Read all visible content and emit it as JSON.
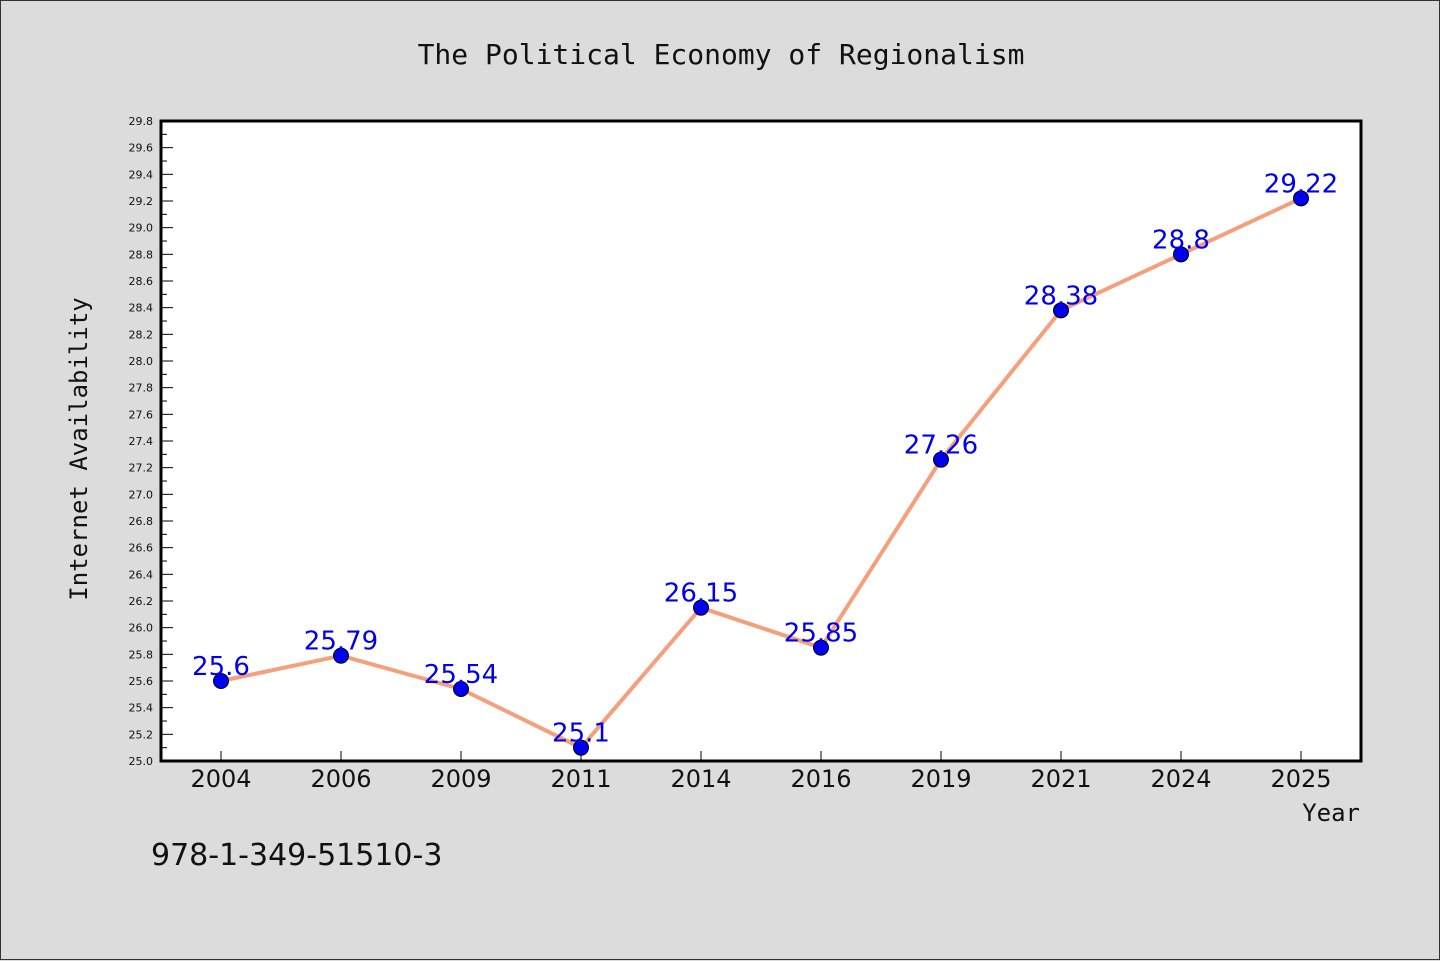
{
  "chart_data": {
    "type": "line",
    "title": "The Political Economy of Regionalism",
    "xlabel": "Year",
    "ylabel": "Internet Availability",
    "categories": [
      "2004",
      "2006",
      "2009",
      "2011",
      "2014",
      "2016",
      "2019",
      "2021",
      "2024",
      "2025"
    ],
    "series": [
      {
        "values": [
          25.6,
          25.79,
          25.54,
          25.1,
          26.15,
          25.85,
          27.26,
          28.38,
          28.8,
          29.22
        ],
        "data_labels": [
          "25.6",
          "25.79",
          "25.54",
          "25.1",
          "26.15",
          "25.85",
          "27.26",
          "28.38",
          "28.8",
          "29.22"
        ],
        "line_color": "#f4a07c",
        "marker_color": "#0000ee"
      }
    ],
    "ylim": [
      25.0,
      29.8
    ],
    "yticks": [
      "25.0",
      "25.2",
      "25.4",
      "25.6",
      "25.8",
      "26.0",
      "26.2",
      "26.4",
      "26.6",
      "26.8",
      "27.0",
      "27.2",
      "27.4",
      "27.6",
      "27.8",
      "28.0",
      "28.2",
      "28.4",
      "28.6",
      "28.8",
      "29.0",
      "29.2",
      "29.4",
      "29.6",
      "29.8"
    ],
    "grid": false,
    "legend": "none"
  },
  "footer": {
    "isbn": "978-1-349-51510-3"
  }
}
